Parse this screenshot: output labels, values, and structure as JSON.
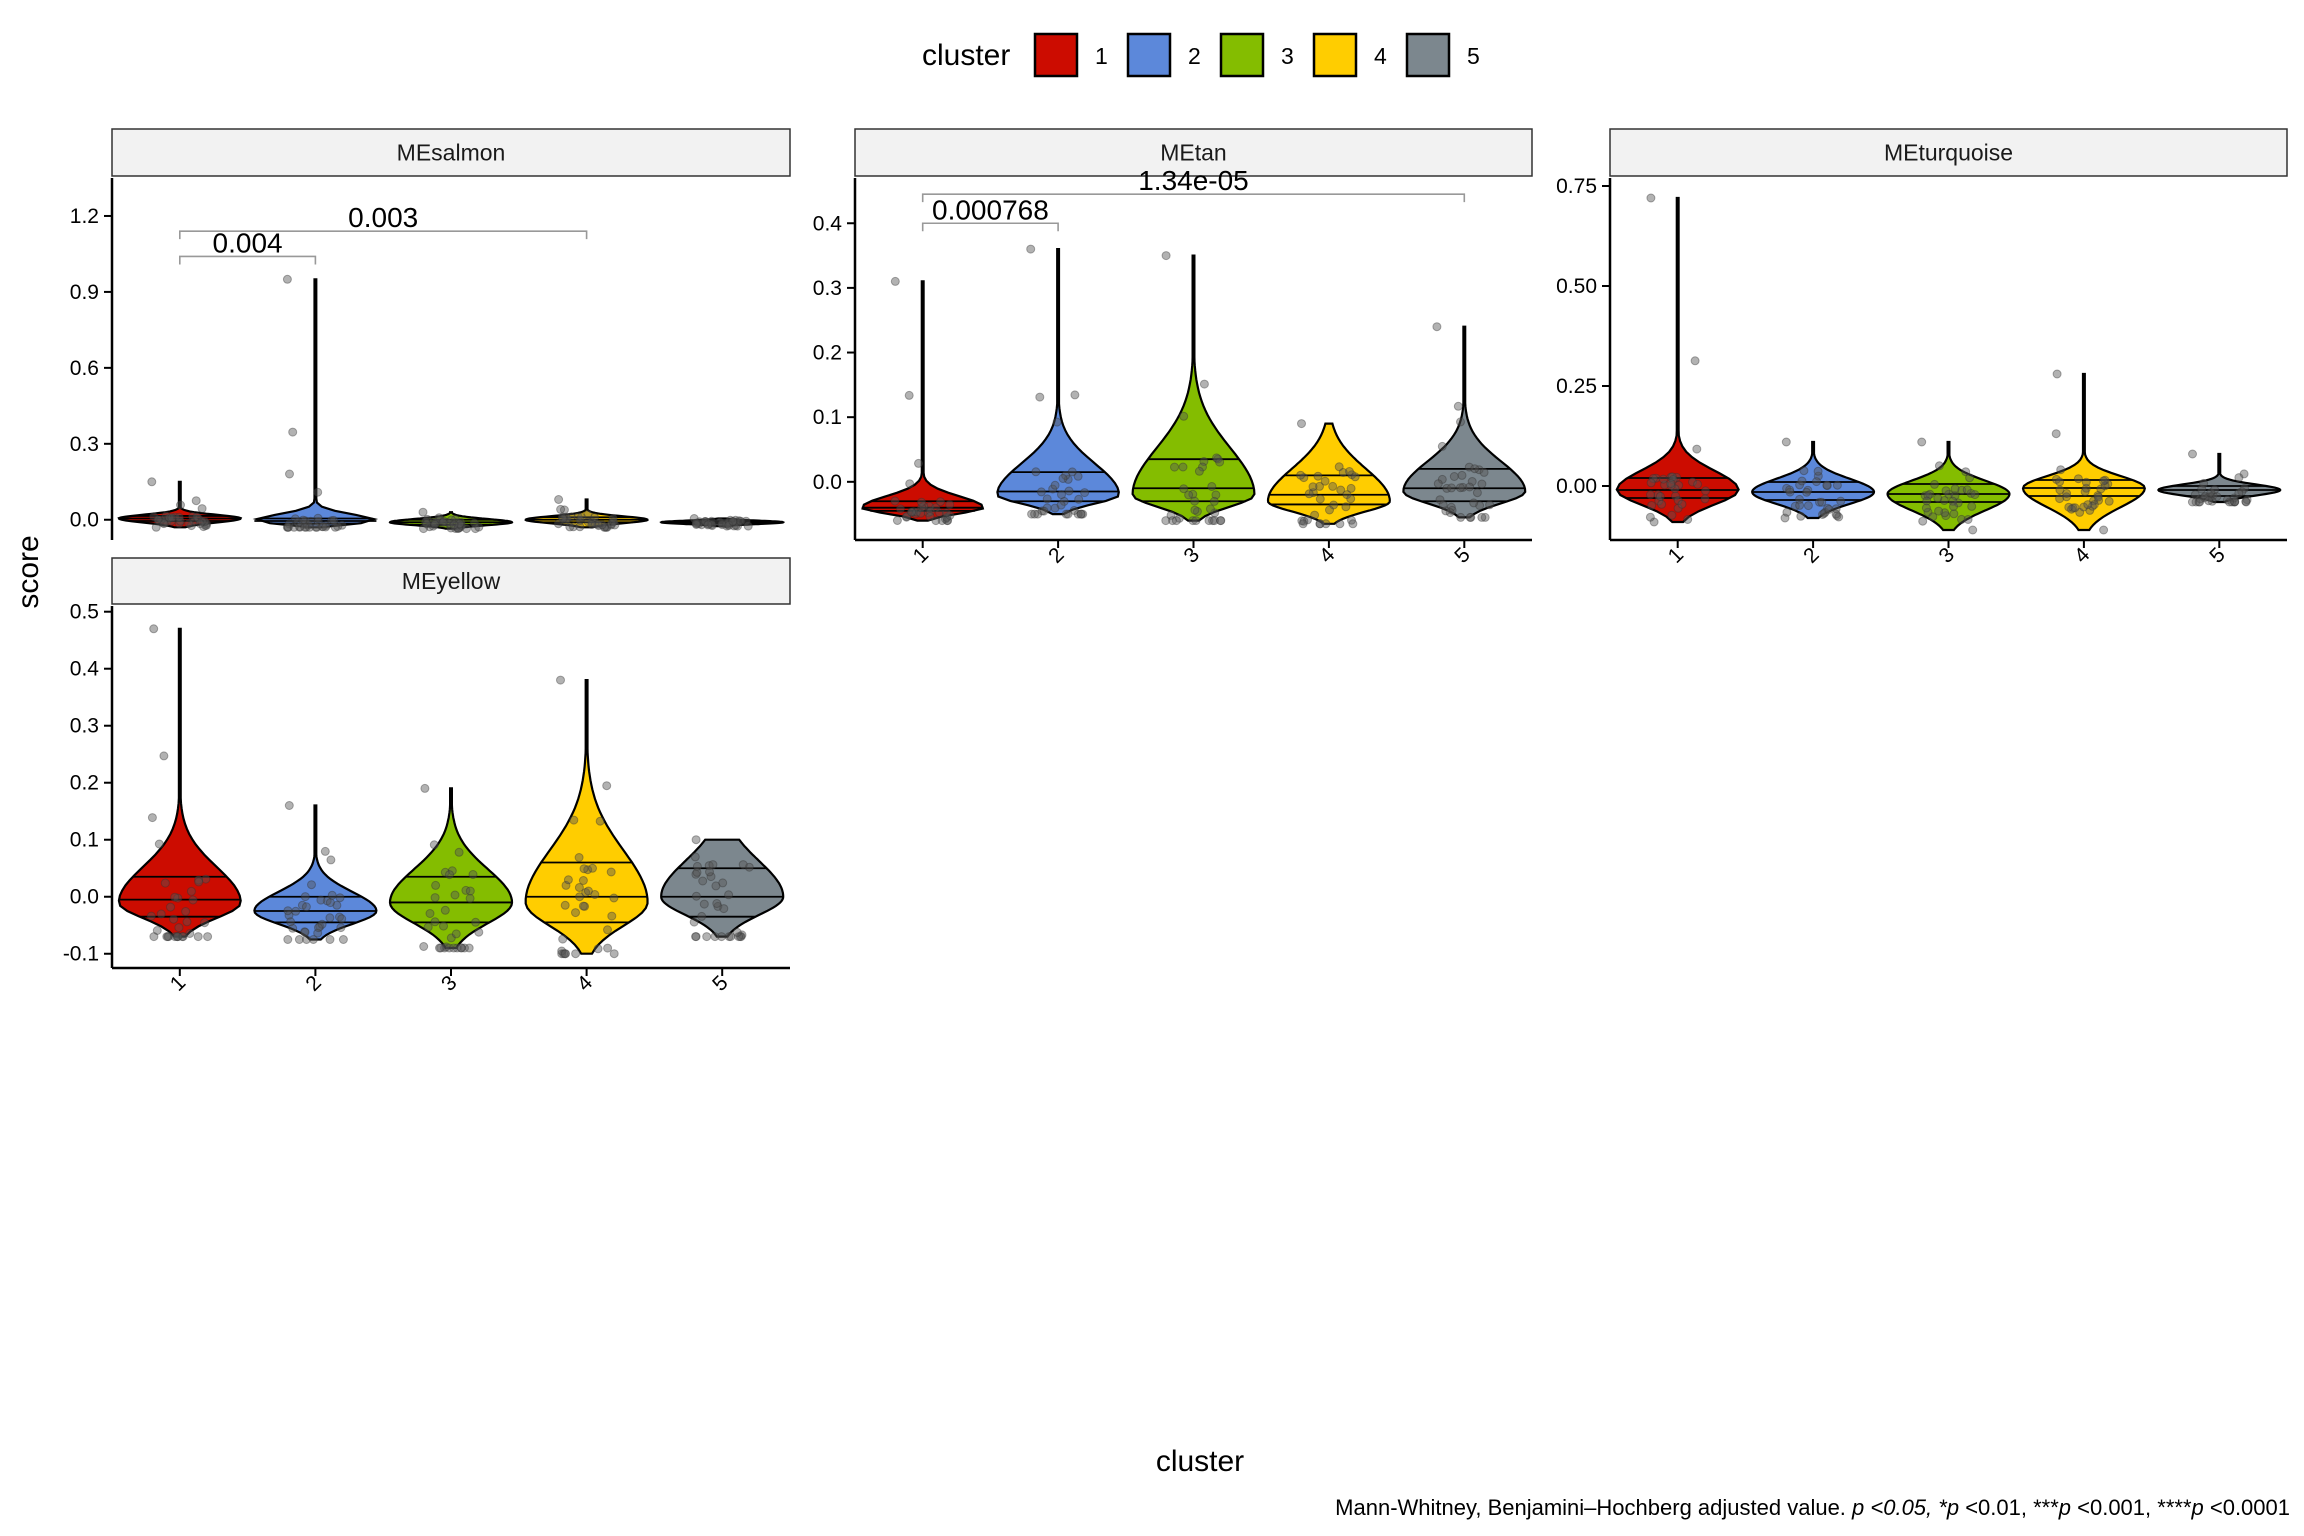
{
  "chart_data": {
    "type": "violin",
    "xlabel": "cluster",
    "ylabel": "score",
    "caption": {
      "text_a": "Mann-Whitney, Benjamini–Hochberg adjusted value. ",
      "text_b": "p <0.05, *p",
      "text_c": " <0.01, ***",
      "text_d": "p",
      "text_e": " <0.001, ****",
      "text_f": "p",
      "text_g": " <0.0001"
    },
    "legend": {
      "title": "cluster",
      "placement": "top",
      "entries": [
        {
          "label": "1",
          "color": "#CC0C00"
        },
        {
          "label": "2",
          "color": "#5C88DA"
        },
        {
          "label": "3",
          "color": "#84BD00"
        },
        {
          "label": "4",
          "color": "#FFCD00"
        },
        {
          "label": "5",
          "color": "#7C878E"
        }
      ]
    },
    "categories": [
      "1",
      "2",
      "3",
      "4",
      "5"
    ],
    "panels": [
      {
        "title": "MEsalmon",
        "ylim": [
          -0.08,
          1.35
        ],
        "yticks": [
          0.0,
          0.3,
          0.6,
          0.9,
          1.2
        ],
        "ytick_labels": [
          "0.0",
          "0.3",
          "0.6",
          "0.9",
          "1.2"
        ],
        "show_x_axis": false,
        "series": [
          {
            "cluster": "1",
            "min": -0.03,
            "max": 0.15,
            "q1": -0.005,
            "median": 0.005,
            "q3": 0.015,
            "peak": 0.005
          },
          {
            "cluster": "2",
            "min": -0.03,
            "max": 0.95,
            "q1": -0.015,
            "median": -0.005,
            "q3": 0.005,
            "peak": -0.005
          },
          {
            "cluster": "3",
            "min": -0.035,
            "max": 0.03,
            "q1": -0.02,
            "median": -0.01,
            "q3": 0.0,
            "peak": -0.01
          },
          {
            "cluster": "4",
            "min": -0.03,
            "max": 0.08,
            "q1": -0.01,
            "median": 0.0,
            "q3": 0.01,
            "peak": 0.0
          },
          {
            "cluster": "5",
            "min": -0.025,
            "max": 0.005,
            "q1": -0.015,
            "median": -0.01,
            "q3": -0.005,
            "peak": -0.01
          }
        ],
        "comparisons": [
          {
            "from": "1",
            "to": "2",
            "label": "0.004",
            "y": 1.04
          },
          {
            "from": "1",
            "to": "4",
            "label": "0.003",
            "y": 1.14
          }
        ]
      },
      {
        "title": "MEtan",
        "ylim": [
          -0.09,
          0.47
        ],
        "yticks": [
          0.0,
          0.1,
          0.2,
          0.3,
          0.4
        ],
        "ytick_labels": [
          "0.0",
          "0.1",
          "0.2",
          "0.3",
          "0.4"
        ],
        "show_x_axis": true,
        "series": [
          {
            "cluster": "1",
            "min": -0.06,
            "max": 0.31,
            "q1": -0.045,
            "median": -0.04,
            "q3": -0.03,
            "peak": -0.04
          },
          {
            "cluster": "2",
            "min": -0.05,
            "max": 0.36,
            "q1": -0.03,
            "median": -0.015,
            "q3": 0.015,
            "peak": -0.02
          },
          {
            "cluster": "3",
            "min": -0.06,
            "max": 0.35,
            "q1": -0.03,
            "median": -0.01,
            "q3": 0.035,
            "peak": -0.02
          },
          {
            "cluster": "4",
            "min": -0.065,
            "max": 0.09,
            "q1": -0.035,
            "median": -0.02,
            "q3": 0.01,
            "peak": -0.03
          },
          {
            "cluster": "5",
            "min": -0.055,
            "max": 0.24,
            "q1": -0.03,
            "median": -0.01,
            "q3": 0.02,
            "peak": -0.015
          }
        ],
        "comparisons": [
          {
            "from": "1",
            "to": "2",
            "label": "0.000768",
            "y": 0.4
          },
          {
            "from": "1",
            "to": "5",
            "label": "1.34e-05",
            "y": 0.445
          }
        ]
      },
      {
        "title": "MEturquoise",
        "ylim": [
          -0.135,
          0.77
        ],
        "yticks": [
          0.0,
          0.25,
          0.5,
          0.75
        ],
        "ytick_labels": [
          "0.00",
          "0.25",
          "0.50",
          "0.75"
        ],
        "show_x_axis": true,
        "series": [
          {
            "cluster": "1",
            "min": -0.09,
            "max": 0.72,
            "q1": -0.03,
            "median": -0.01,
            "q3": 0.02,
            "peak": -0.01
          },
          {
            "cluster": "2",
            "min": -0.08,
            "max": 0.11,
            "q1": -0.035,
            "median": -0.015,
            "q3": 0.01,
            "peak": -0.015
          },
          {
            "cluster": "3",
            "min": -0.11,
            "max": 0.11,
            "q1": -0.04,
            "median": -0.02,
            "q3": 0.005,
            "peak": -0.02
          },
          {
            "cluster": "4",
            "min": -0.11,
            "max": 0.28,
            "q1": -0.025,
            "median": -0.005,
            "q3": 0.015,
            "peak": -0.005
          },
          {
            "cluster": "5",
            "min": -0.04,
            "max": 0.08,
            "q1": -0.025,
            "median": -0.01,
            "q3": 0.0,
            "peak": -0.01
          }
        ],
        "comparisons": []
      },
      {
        "title": "MEyellow",
        "ylim": [
          -0.125,
          0.51
        ],
        "yticks": [
          -0.1,
          0.0,
          0.1,
          0.2,
          0.3,
          0.4,
          0.5
        ],
        "ytick_labels": [
          "-0.1",
          "0.0",
          "0.1",
          "0.2",
          "0.3",
          "0.4",
          "0.5"
        ],
        "show_x_axis": true,
        "series": [
          {
            "cluster": "1",
            "min": -0.07,
            "max": 0.47,
            "q1": -0.035,
            "median": -0.005,
            "q3": 0.035,
            "peak": -0.01
          },
          {
            "cluster": "2",
            "min": -0.075,
            "max": 0.16,
            "q1": -0.045,
            "median": -0.025,
            "q3": 0.0,
            "peak": -0.025
          },
          {
            "cluster": "3",
            "min": -0.09,
            "max": 0.19,
            "q1": -0.045,
            "median": -0.01,
            "q3": 0.035,
            "peak": -0.01
          },
          {
            "cluster": "4",
            "min": -0.1,
            "max": 0.38,
            "q1": -0.045,
            "median": 0.0,
            "q3": 0.06,
            "peak": -0.01
          },
          {
            "cluster": "5",
            "min": -0.07,
            "max": 0.1,
            "q1": -0.035,
            "median": 0.0,
            "q3": 0.05,
            "peak": 0.0
          }
        ],
        "comparisons": []
      }
    ]
  }
}
